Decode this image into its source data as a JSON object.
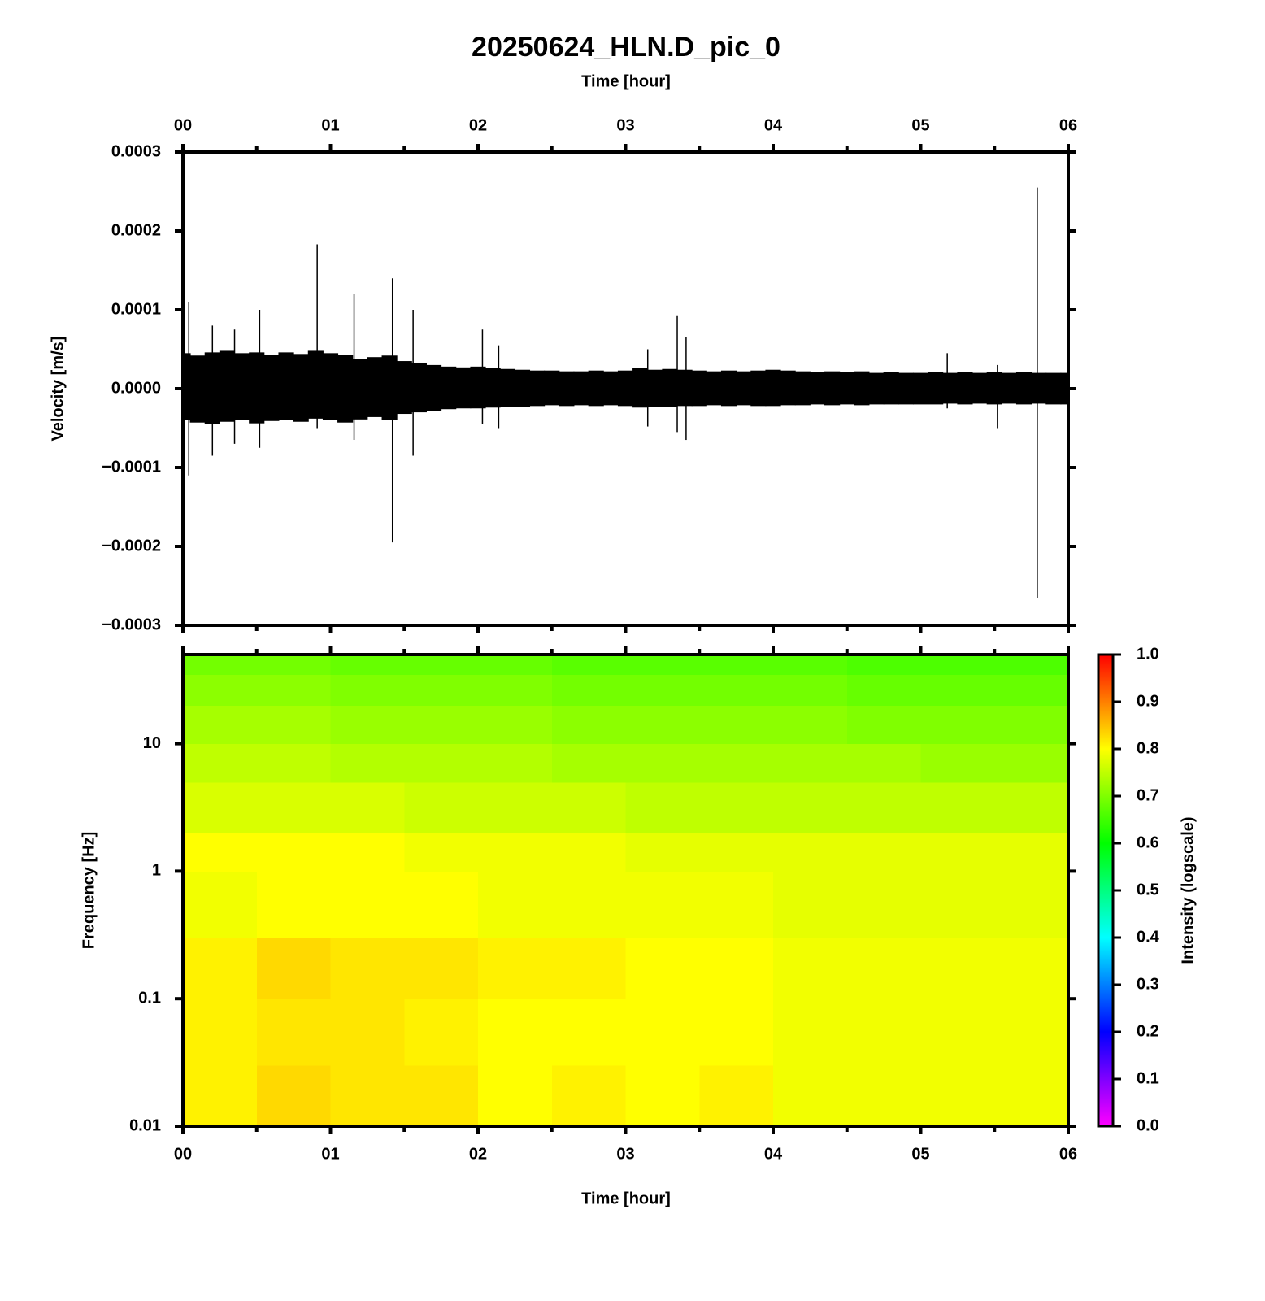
{
  "chart_data": [
    {
      "type": "waveform",
      "title": "20250624_HLN.D_pic_0",
      "xlabel": "Time [hour]",
      "ylabel": "Velocity [m/s]",
      "xlim": [
        0,
        6
      ],
      "xticks": [
        {
          "value": 0,
          "label": "00"
        },
        {
          "value": 1,
          "label": "01"
        },
        {
          "value": 2,
          "label": "02"
        },
        {
          "value": 3,
          "label": "03"
        },
        {
          "value": 4,
          "label": "04"
        },
        {
          "value": 5,
          "label": "05"
        },
        {
          "value": 6,
          "label": "06"
        }
      ],
      "ylim": [
        -0.0003,
        0.0003
      ],
      "yticks": [
        0.0003,
        0.0002,
        0.0001,
        {
          "value": 0,
          "label": "0.0000"
        },
        {
          "value": -0.0001,
          "label": "−0.0001"
        },
        {
          "value": -0.0002,
          "label": "−0.0002"
        },
        {
          "value": -0.0003,
          "label": "−0.0003"
        }
      ],
      "x": [
        0,
        0.1,
        0.2,
        0.3,
        0.4,
        0.5,
        0.6,
        0.7,
        0.8,
        0.9,
        1,
        1.1,
        1.2,
        1.3,
        1.4,
        1.5,
        1.6,
        1.7,
        1.8,
        1.9,
        2,
        2.1,
        2.2,
        2.3,
        2.4,
        2.5,
        2.6,
        2.7,
        2.8,
        2.9,
        3,
        3.1,
        3.2,
        3.3,
        3.4,
        3.5,
        3.6,
        3.7,
        3.8,
        3.9,
        4,
        4.1,
        4.2,
        4.3,
        4.4,
        4.5,
        4.6,
        4.7,
        4.8,
        4.9,
        5,
        5.1,
        5.2,
        5.3,
        5.4,
        5.5,
        5.6,
        5.7,
        5.8,
        5.9,
        6
      ],
      "series": [
        {
          "color": "#000000",
          "values": [
            4.5e-05,
            4.2e-05,
            4.6e-05,
            4.8e-05,
            4.5e-05,
            4.6e-05,
            4.3e-05,
            4.6e-05,
            4.4e-05,
            4.8e-05,
            4.5e-05,
            4.3e-05,
            3.8e-05,
            4e-05,
            4.2e-05,
            3.5e-05,
            3.3e-05,
            3e-05,
            2.8e-05,
            2.7e-05,
            2.8e-05,
            2.6e-05,
            2.5e-05,
            2.4e-05,
            2.3e-05,
            2.3e-05,
            2.2e-05,
            2.2e-05,
            2.3e-05,
            2.2e-05,
            2.3e-05,
            2.6e-05,
            2.4e-05,
            2.5e-05,
            2.4e-05,
            2.3e-05,
            2.2e-05,
            2.3e-05,
            2.2e-05,
            2.3e-05,
            2.4e-05,
            2.3e-05,
            2.2e-05,
            2.1e-05,
            2.2e-05,
            2.1e-05,
            2.2e-05,
            2e-05,
            2.1e-05,
            2e-05,
            2e-05,
            2.1e-05,
            2e-05,
            2.1e-05,
            2e-05,
            2.1e-05,
            2e-05,
            2.1e-05,
            2e-05,
            2e-05,
            2e-05
          ]
        },
        {
          "color": "#000000",
          "values": [
            -4e-05,
            -4.3e-05,
            -4.5e-05,
            -4.2e-05,
            -4e-05,
            -4.4e-05,
            -4.1e-05,
            -4e-05,
            -4.2e-05,
            -3.8e-05,
            -4e-05,
            -4.3e-05,
            -3.9e-05,
            -3.6e-05,
            -4e-05,
            -3.2e-05,
            -3e-05,
            -2.8e-05,
            -2.6e-05,
            -2.5e-05,
            -2.5e-05,
            -2.4e-05,
            -2.3e-05,
            -2.3e-05,
            -2.2e-05,
            -2.1e-05,
            -2.2e-05,
            -2.1e-05,
            -2.2e-05,
            -2.1e-05,
            -2.2e-05,
            -2.4e-05,
            -2.3e-05,
            -2.3e-05,
            -2.2e-05,
            -2.2e-05,
            -2.1e-05,
            -2.2e-05,
            -2.1e-05,
            -2.2e-05,
            -2.2e-05,
            -2.1e-05,
            -2.1e-05,
            -2e-05,
            -2.1e-05,
            -2e-05,
            -2.1e-05,
            -2e-05,
            -2e-05,
            -2e-05,
            -2e-05,
            -2e-05,
            -1.9e-05,
            -2e-05,
            -1.9e-05,
            -2e-05,
            -1.9e-05,
            -2e-05,
            -1.9e-05,
            -2e-05,
            -2e-05
          ]
        }
      ],
      "spikes": {
        "x": [
          0.04,
          0.2,
          0.35,
          0.52,
          0.91,
          1.16,
          1.42,
          1.56,
          2.03,
          2.14,
          3.15,
          3.35,
          3.41,
          5.18,
          5.52,
          5.79
        ],
        "max": [
          0.00011,
          8e-05,
          7.5e-05,
          0.0001,
          0.000183,
          0.00012,
          0.00014,
          0.0001,
          7.5e-05,
          5.5e-05,
          5e-05,
          9.2e-05,
          6.5e-05,
          4.5e-05,
          3e-05,
          0.000255
        ],
        "min": [
          -0.00011,
          -8.5e-05,
          -7e-05,
          -7.5e-05,
          -5e-05,
          -6.5e-05,
          -0.000195,
          -8.5e-05,
          -4.5e-05,
          -5e-05,
          -4.8e-05,
          -5.5e-05,
          -6.5e-05,
          -2.5e-05,
          -5e-05,
          -0.000265
        ]
      }
    },
    {
      "type": "heatmap",
      "xlabel": "Time [hour]",
      "ylabel": "Frequency [Hz]",
      "colorbar_label": "Intensity (logscale)",
      "xlim": [
        0,
        6
      ],
      "xticks": [
        {
          "value": 0,
          "label": "00"
        },
        {
          "value": 1,
          "label": "01"
        },
        {
          "value": 2,
          "label": "02"
        },
        {
          "value": 3,
          "label": "03"
        },
        {
          "value": 4,
          "label": "04"
        },
        {
          "value": 5,
          "label": "05"
        },
        {
          "value": 6,
          "label": "06"
        }
      ],
      "ylim": [
        0.01,
        50
      ],
      "ylog": true,
      "yticks": [
        0.01,
        0.1,
        1,
        10
      ],
      "xedges": [
        0,
        0.5,
        1,
        1.5,
        2,
        2.5,
        3,
        3.5,
        4,
        4.5,
        5,
        5.5,
        6
      ],
      "yedges": [
        0.01,
        0.03,
        0.1,
        0.3,
        1,
        2,
        5,
        10,
        20,
        35,
        50
      ],
      "values": [
        [
          0.81,
          0.83,
          0.82,
          0.82,
          0.8,
          0.81,
          0.8,
          0.81,
          0.79,
          0.79,
          0.79,
          0.79
        ],
        [
          0.81,
          0.82,
          0.82,
          0.81,
          0.8,
          0.8,
          0.8,
          0.8,
          0.79,
          0.79,
          0.79,
          0.79
        ],
        [
          0.81,
          0.83,
          0.82,
          0.82,
          0.81,
          0.81,
          0.8,
          0.8,
          0.79,
          0.79,
          0.79,
          0.79
        ],
        [
          0.79,
          0.8,
          0.8,
          0.8,
          0.79,
          0.79,
          0.79,
          0.79,
          0.78,
          0.78,
          0.78,
          0.78
        ],
        [
          0.8,
          0.8,
          0.8,
          0.79,
          0.79,
          0.79,
          0.78,
          0.78,
          0.78,
          0.78,
          0.78,
          0.78
        ],
        [
          0.77,
          0.77,
          0.77,
          0.76,
          0.76,
          0.76,
          0.75,
          0.75,
          0.75,
          0.75,
          0.75,
          0.75
        ],
        [
          0.75,
          0.75,
          0.74,
          0.74,
          0.74,
          0.73,
          0.73,
          0.73,
          0.73,
          0.73,
          0.72,
          0.72
        ],
        [
          0.73,
          0.73,
          0.72,
          0.72,
          0.72,
          0.71,
          0.71,
          0.71,
          0.71,
          0.7,
          0.7,
          0.7
        ],
        [
          0.71,
          0.71,
          0.7,
          0.7,
          0.7,
          0.69,
          0.69,
          0.69,
          0.69,
          0.68,
          0.68,
          0.68
        ],
        [
          0.69,
          0.69,
          0.68,
          0.68,
          0.68,
          0.67,
          0.67,
          0.67,
          0.67,
          0.66,
          0.66,
          0.66
        ]
      ],
      "clim": [
        0,
        1
      ],
      "colormap": [
        "#ff00ff",
        "#0000ff",
        "#00ffff",
        "#00ff00",
        "#ffff00",
        "#ff0000"
      ],
      "cticks": [
        {
          "value": 0,
          "label": "0.0"
        },
        0.1,
        0.2,
        0.3,
        0.4,
        0.5,
        0.6,
        0.7,
        0.8,
        0.9,
        {
          "value": 1,
          "label": "1.0"
        }
      ]
    }
  ]
}
